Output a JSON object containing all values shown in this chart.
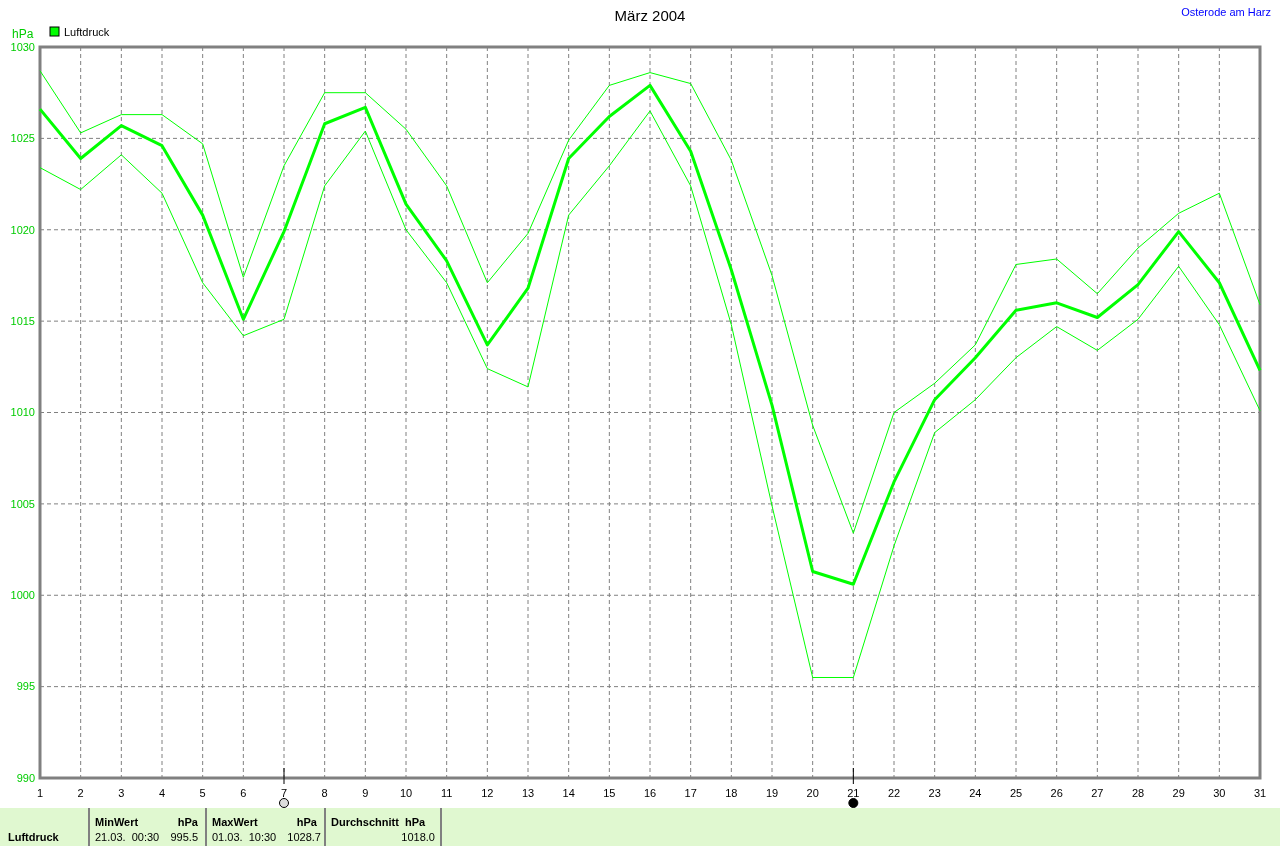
{
  "chart_data": {
    "type": "line",
    "title": "März 2004",
    "subtitle": "Osterode am Harz",
    "ylabel": "hPa",
    "x": [
      1,
      2,
      3,
      4,
      5,
      6,
      7,
      8,
      9,
      10,
      11,
      12,
      13,
      14,
      15,
      16,
      17,
      18,
      19,
      20,
      21,
      22,
      23,
      24,
      25,
      26,
      27,
      28,
      29,
      30,
      31
    ],
    "series": [
      {
        "name": "Luftdruck",
        "color": "#00ff00",
        "values": [
          1026.6,
          1023.9,
          1025.7,
          1024.6,
          1020.8,
          1015.1,
          1019.9,
          1025.8,
          1026.7,
          1021.4,
          1018.3,
          1013.7,
          1016.8,
          1023.9,
          1026.2,
          1027.9,
          1024.3,
          1017.8,
          1010.4,
          1001.3,
          1000.6,
          1006.2,
          1010.7,
          1013.0,
          1015.6,
          1016.0,
          1015.2,
          1017.0,
          1019.9,
          1017.1,
          1012.3
        ]
      },
      {
        "color": "#00ff00",
        "values": [
          1028.7,
          1025.3,
          1026.3,
          1026.3,
          1024.7,
          1017.4,
          1023.5,
          1027.5,
          1027.5,
          1025.5,
          1022.4,
          1017.1,
          1019.8,
          1024.9,
          1027.9,
          1028.6,
          1028.0,
          1023.8,
          1017.5,
          1009.3,
          1003.4,
          1010.0,
          1011.6,
          1013.7,
          1018.1,
          1018.4,
          1016.5,
          1019.0,
          1020.9,
          1022.0,
          1015.9
        ]
      },
      {
        "color": "#00ff00",
        "values": [
          1023.4,
          1022.2,
          1024.1,
          1022.0,
          1017.1,
          1014.2,
          1015.1,
          1022.4,
          1025.4,
          1020.0,
          1017.1,
          1012.4,
          1011.4,
          1020.8,
          1023.5,
          1026.5,
          1022.4,
          1014.8,
          1004.9,
          995.5,
          995.5,
          1002.7,
          1008.9,
          1010.7,
          1013.0,
          1014.7,
          1013.4,
          1015.1,
          1018.0,
          1014.8,
          1010.1
        ]
      }
    ],
    "xlim": [
      1,
      31
    ],
    "xticks": [
      1,
      2,
      3,
      4,
      5,
      6,
      7,
      8,
      9,
      10,
      11,
      12,
      13,
      14,
      15,
      16,
      17,
      18,
      19,
      20,
      21,
      22,
      23,
      24,
      25,
      26,
      27,
      28,
      29,
      30,
      31
    ],
    "ylim": [
      990,
      1030
    ],
    "yticks": [
      990,
      995,
      1000,
      1005,
      1010,
      1015,
      1020,
      1025,
      1030
    ],
    "grid": true,
    "legend": "top left",
    "marker": "none",
    "line_style": "solid",
    "annotations": [
      "MinWert",
      "hPa",
      "21.03.  00:30",
      "995.5",
      "MaxWert",
      "hPa",
      "01.03.  10:30",
      "1028.7",
      "Durchschnitt  hPa",
      "1018.0"
    ]
  }
}
